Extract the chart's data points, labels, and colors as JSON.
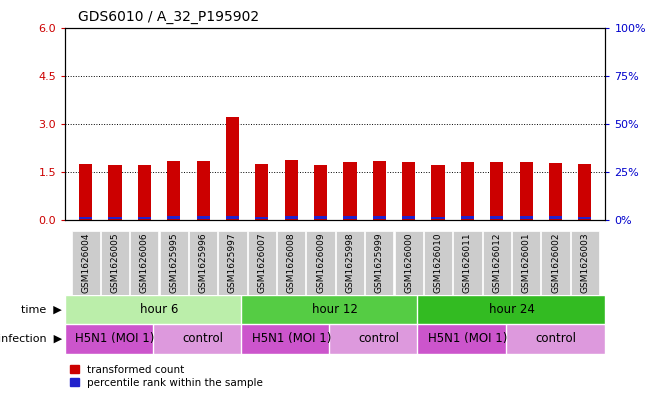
{
  "title": "GDS6010 / A_32_P195902",
  "samples": [
    "GSM1626004",
    "GSM1626005",
    "GSM1626006",
    "GSM1625995",
    "GSM1625996",
    "GSM1625997",
    "GSM1626007",
    "GSM1626008",
    "GSM1626009",
    "GSM1625998",
    "GSM1625999",
    "GSM1626000",
    "GSM1626010",
    "GSM1626011",
    "GSM1626012",
    "GSM1626001",
    "GSM1626002",
    "GSM1626003"
  ],
  "red_values": [
    1.75,
    1.72,
    1.73,
    1.85,
    1.85,
    3.22,
    1.75,
    1.88,
    1.72,
    1.82,
    1.85,
    1.82,
    1.72,
    1.82,
    1.82,
    1.82,
    1.77,
    1.75
  ],
  "blue_heights": [
    0.07,
    0.07,
    0.07,
    0.1,
    0.1,
    0.1,
    0.07,
    0.1,
    0.1,
    0.1,
    0.1,
    0.1,
    0.07,
    0.1,
    0.1,
    0.1,
    0.08,
    0.07
  ],
  "blue_bottoms": [
    0.04,
    0.04,
    0.04,
    0.04,
    0.04,
    0.04,
    0.04,
    0.04,
    0.04,
    0.04,
    0.04,
    0.04,
    0.04,
    0.04,
    0.04,
    0.04,
    0.04,
    0.04
  ],
  "ylim_left": [
    0,
    6
  ],
  "ylim_right": [
    0,
    100
  ],
  "yticks_left": [
    0,
    1.5,
    3.0,
    4.5,
    6
  ],
  "yticks_right": [
    0,
    25,
    50,
    75,
    100
  ],
  "grid_values": [
    1.5,
    3.0,
    4.5
  ],
  "bar_color_red": "#cc0000",
  "bar_color_blue": "#2222cc",
  "bar_width": 0.45,
  "time_groups": [
    {
      "label": "hour 6",
      "start": 0,
      "end": 6,
      "color": "#bbeeaa"
    },
    {
      "label": "hour 12",
      "start": 6,
      "end": 12,
      "color": "#55cc44"
    },
    {
      "label": "hour 24",
      "start": 12,
      "end": 18,
      "color": "#33bb22"
    }
  ],
  "infection_groups": [
    {
      "label": "H5N1 (MOI 1)",
      "start": 0,
      "end": 3,
      "color": "#cc55cc"
    },
    {
      "label": "control",
      "start": 3,
      "end": 6,
      "color": "#dd99dd"
    },
    {
      "label": "H5N1 (MOI 1)",
      "start": 6,
      "end": 9,
      "color": "#cc55cc"
    },
    {
      "label": "control",
      "start": 9,
      "end": 12,
      "color": "#dd99dd"
    },
    {
      "label": "H5N1 (MOI 1)",
      "start": 12,
      "end": 15,
      "color": "#cc55cc"
    },
    {
      "label": "control",
      "start": 15,
      "end": 18,
      "color": "#dd99dd"
    }
  ],
  "legend_red_label": "transformed count",
  "legend_blue_label": "percentile rank within the sample",
  "axis_color_left": "#cc0000",
  "axis_color_right": "#0000cc",
  "xlabel_bg_color": "#cccccc",
  "title_fontsize": 10,
  "bar_label_fontsize": 6.5,
  "row_label_fontsize": 8,
  "group_label_fontsize": 8.5
}
